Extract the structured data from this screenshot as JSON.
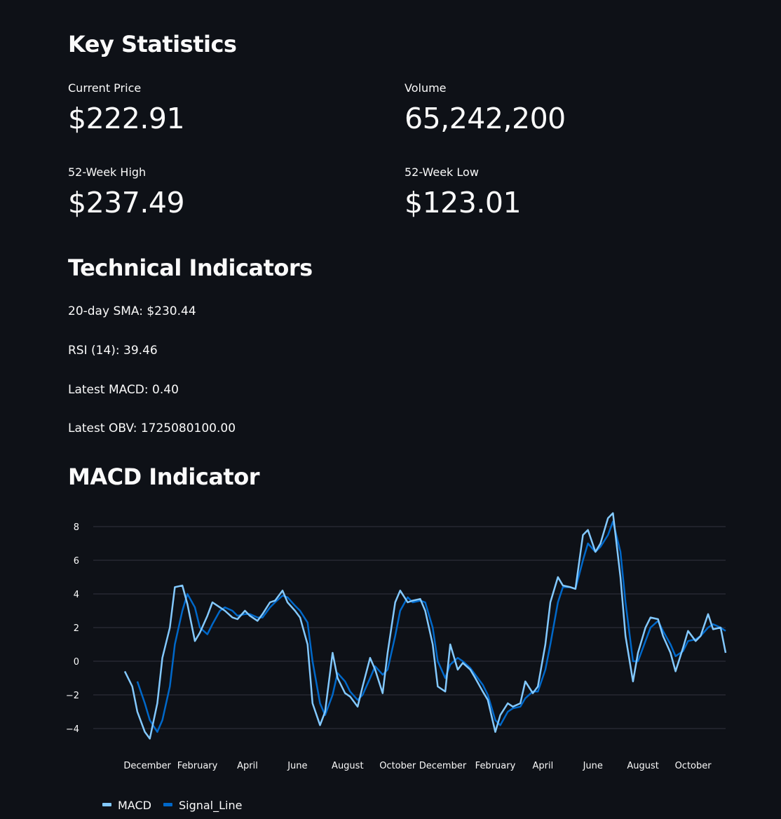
{
  "key_statistics": {
    "heading": "Key Statistics",
    "metrics": [
      {
        "label": "Current Price",
        "value": "$222.91"
      },
      {
        "label": "Volume",
        "value": "65,242,200"
      },
      {
        "label": "52-Week High",
        "value": "$237.49"
      },
      {
        "label": "52-Week Low",
        "value": "$123.01"
      }
    ]
  },
  "technical_indicators": {
    "heading": "Technical Indicators",
    "items": [
      "20-day SMA: $230.44",
      "RSI (14): 39.46",
      "Latest MACD: 0.40",
      "Latest OBV: 1725080100.00"
    ]
  },
  "macd_section": {
    "heading": "MACD Indicator"
  },
  "chart_data": {
    "type": "line",
    "title": "",
    "xlabel": "",
    "ylabel": "",
    "ylim": [
      -5,
      9
    ],
    "y_ticks": [
      -4,
      -2,
      0,
      2,
      4,
      6,
      8
    ],
    "x_tick_labels": [
      "December",
      "February",
      "April",
      "June",
      "August",
      "October",
      "December",
      "February",
      "April",
      "June",
      "August",
      "October"
    ],
    "x_tick_positions": [
      0.9,
      2.9,
      4.9,
      6.9,
      8.9,
      10.9,
      12.7,
      14.8,
      16.7,
      18.7,
      20.7,
      22.7
    ],
    "x_range": [
      0,
      24
    ],
    "grid": true,
    "legend_position": "bottom-left",
    "colors": {
      "MACD": "#83c9ff",
      "Signal_Line": "#0068c9"
    },
    "series": [
      {
        "name": "MACD",
        "x": [
          0,
          0.3,
          0.5,
          0.8,
          1.0,
          1.3,
          1.5,
          1.8,
          2.0,
          2.3,
          2.5,
          2.8,
          3.0,
          3.3,
          3.5,
          3.8,
          4.0,
          4.3,
          4.5,
          4.8,
          5.0,
          5.3,
          5.5,
          5.8,
          6.0,
          6.3,
          6.5,
          6.8,
          7.0,
          7.3,
          7.5,
          7.8,
          8.0,
          8.3,
          8.5,
          8.8,
          9.0,
          9.3,
          9.5,
          9.8,
          10.0,
          10.3,
          10.5,
          10.8,
          11.0,
          11.3,
          11.5,
          11.8,
          12.0,
          12.3,
          12.5,
          12.8,
          13.0,
          13.3,
          13.5,
          13.8,
          14.0,
          14.3,
          14.5,
          14.8,
          15.0,
          15.3,
          15.5,
          15.8,
          16.0,
          16.3,
          16.5,
          16.8,
          17.0,
          17.3,
          17.5,
          17.8,
          18.0,
          18.3,
          18.5,
          18.8,
          19.0,
          19.3,
          19.5,
          19.8,
          20.0,
          20.3,
          20.5,
          20.8,
          21.0,
          21.3,
          21.5,
          21.8,
          22.0,
          22.3,
          22.5,
          22.8,
          23.0,
          23.3,
          23.5,
          23.8,
          24.0
        ],
        "values": [
          -0.6,
          -1.5,
          -3.0,
          -4.2,
          -4.6,
          -2.5,
          0.2,
          2.0,
          4.4,
          4.5,
          3.4,
          1.2,
          1.7,
          2.7,
          3.5,
          3.2,
          3.0,
          2.6,
          2.5,
          3.0,
          2.7,
          2.4,
          2.8,
          3.5,
          3.6,
          4.2,
          3.5,
          3.0,
          2.6,
          1.0,
          -2.5,
          -3.8,
          -3.0,
          0.5,
          -1.0,
          -1.9,
          -2.1,
          -2.7,
          -1.5,
          0.2,
          -0.5,
          -1.9,
          0.5,
          3.5,
          4.2,
          3.5,
          3.6,
          3.7,
          3.0,
          1.0,
          -1.5,
          -1.8,
          1.0,
          -0.5,
          -0.1,
          -0.5,
          -1.0,
          -1.8,
          -2.3,
          -4.2,
          -3.2,
          -2.5,
          -2.7,
          -2.5,
          -1.2,
          -1.9,
          -1.5,
          1.0,
          3.5,
          5.0,
          4.5,
          4.4,
          4.3,
          7.5,
          7.8,
          6.5,
          7.0,
          8.5,
          8.8,
          5.0,
          1.5,
          -1.2,
          0.5,
          2.0,
          2.6,
          2.5,
          1.5,
          0.5,
          -0.6,
          0.8,
          1.8,
          1.2,
          1.5,
          2.8,
          1.9,
          2.0,
          0.5
        ]
      },
      {
        "name": "Signal_Line",
        "x": [
          0.5,
          0.8,
          1.0,
          1.3,
          1.5,
          1.8,
          2.0,
          2.3,
          2.5,
          2.8,
          3.0,
          3.3,
          3.5,
          3.8,
          4.0,
          4.3,
          4.5,
          4.8,
          5.0,
          5.3,
          5.5,
          5.8,
          6.0,
          6.3,
          6.5,
          6.8,
          7.0,
          7.3,
          7.5,
          7.8,
          8.0,
          8.3,
          8.5,
          8.8,
          9.0,
          9.3,
          9.5,
          9.8,
          10.0,
          10.3,
          10.5,
          10.8,
          11.0,
          11.3,
          11.5,
          11.8,
          12.0,
          12.3,
          12.5,
          12.8,
          13.0,
          13.3,
          13.5,
          13.8,
          14.0,
          14.3,
          14.5,
          14.8,
          15.0,
          15.3,
          15.5,
          15.8,
          16.0,
          16.3,
          16.5,
          16.8,
          17.0,
          17.3,
          17.5,
          17.8,
          18.0,
          18.3,
          18.5,
          18.8,
          19.0,
          19.3,
          19.5,
          19.8,
          20.0,
          20.3,
          20.5,
          20.8,
          21.0,
          21.3,
          21.5,
          21.8,
          22.0,
          22.3,
          22.5,
          22.8,
          23.0,
          23.3,
          23.5,
          23.8,
          24.0
        ],
        "values": [
          -1.2,
          -2.5,
          -3.5,
          -4.2,
          -3.5,
          -1.5,
          1.0,
          3.0,
          4.0,
          3.2,
          2.0,
          1.6,
          2.2,
          3.0,
          3.2,
          3.0,
          2.7,
          2.8,
          2.8,
          2.6,
          2.6,
          3.2,
          3.5,
          3.9,
          3.8,
          3.3,
          3.0,
          2.3,
          0.0,
          -2.5,
          -3.2,
          -2.0,
          -0.7,
          -1.2,
          -1.8,
          -2.3,
          -2.0,
          -1.0,
          -0.3,
          -0.8,
          -0.5,
          1.5,
          3.0,
          3.8,
          3.5,
          3.6,
          3.5,
          2.0,
          0.0,
          -1.0,
          -0.2,
          0.2,
          0.0,
          -0.4,
          -0.8,
          -1.4,
          -2.0,
          -3.5,
          -3.8,
          -3.0,
          -2.8,
          -2.7,
          -2.2,
          -1.8,
          -1.8,
          -0.5,
          1.0,
          3.5,
          4.4,
          4.4,
          4.3,
          6.0,
          7.0,
          6.5,
          6.8,
          7.5,
          8.3,
          6.5,
          3.5,
          0.0,
          0.0,
          1.2,
          2.0,
          2.4,
          1.8,
          1.0,
          0.3,
          0.6,
          1.2,
          1.3,
          1.5,
          2.0,
          2.2,
          2.0,
          1.8
        ]
      }
    ]
  }
}
